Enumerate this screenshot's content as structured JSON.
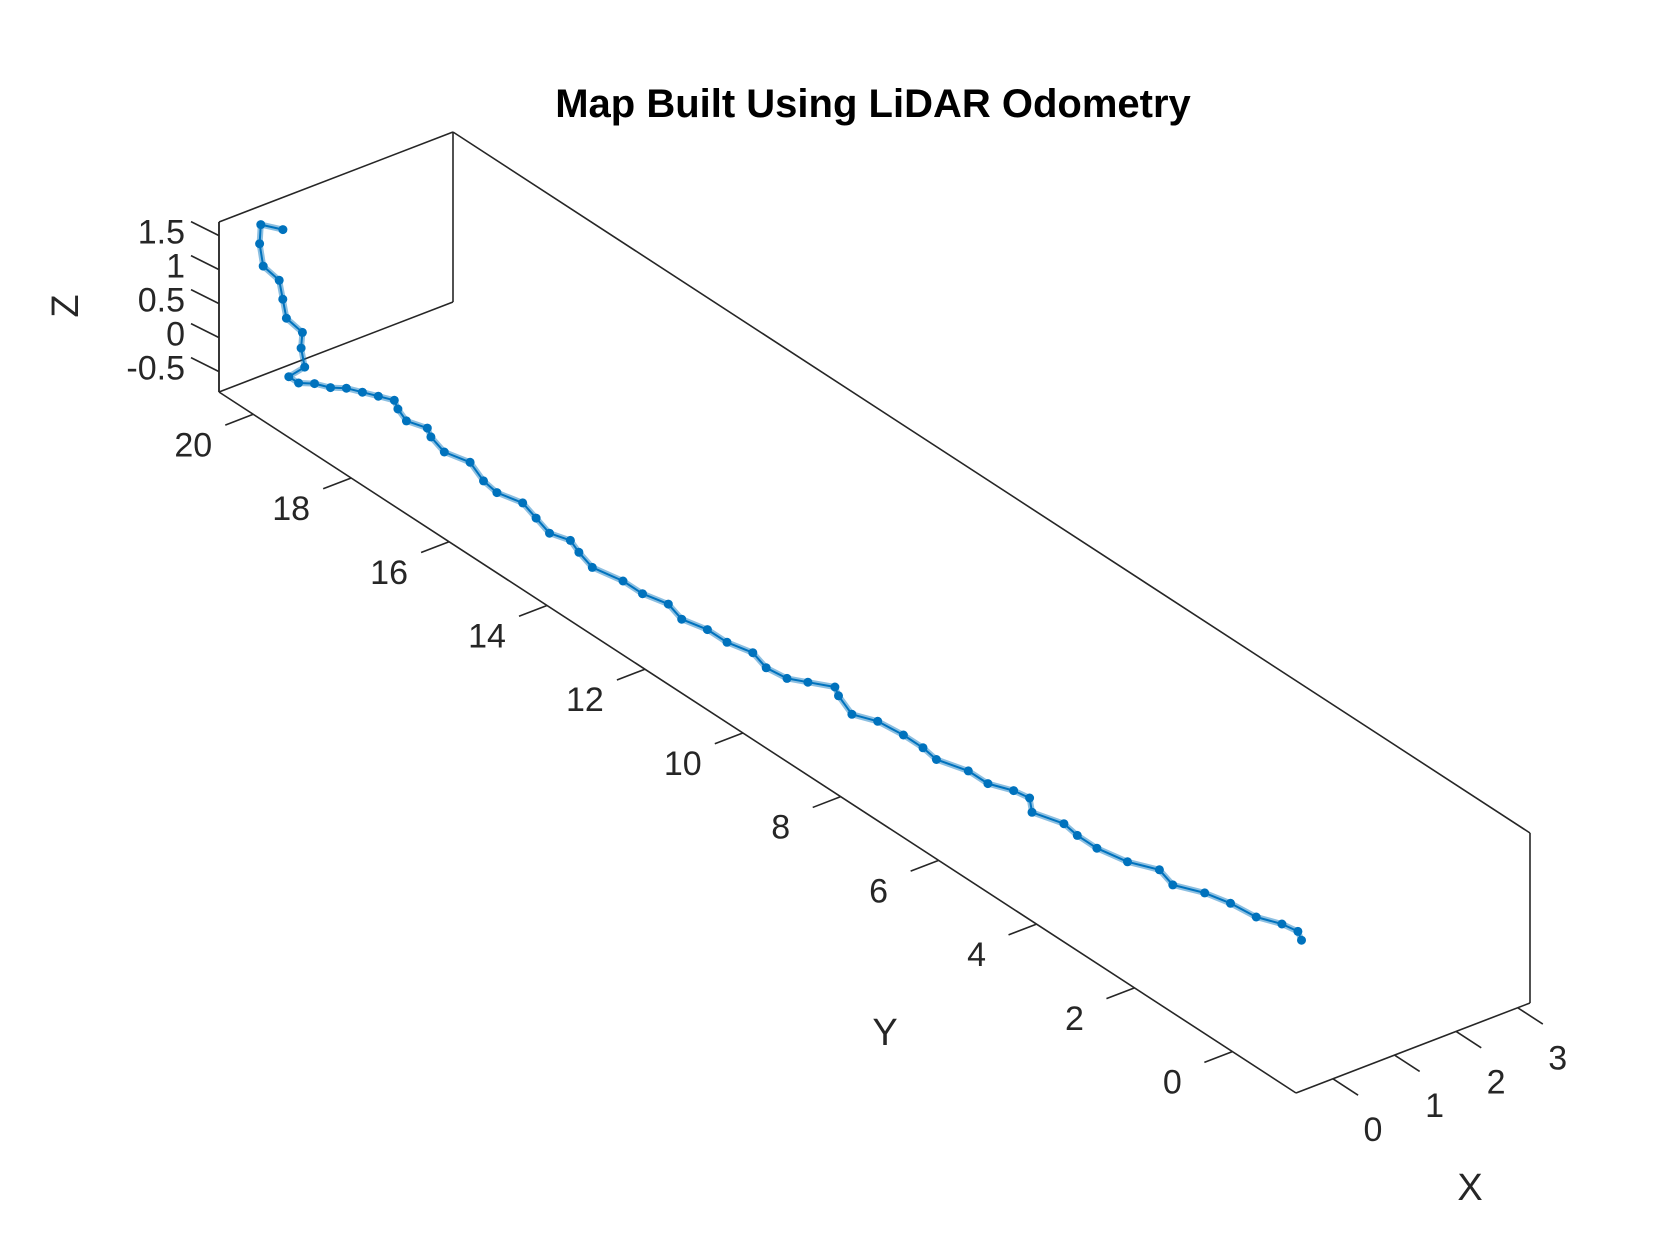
{
  "chart_data": {
    "type": "line3d",
    "title": "Map Built Using LiDAR Odometry",
    "xlabel": "X",
    "ylabel": "Y",
    "zlabel": "Z",
    "xlim": [
      -0.6,
      3.2
    ],
    "ylim": [
      -1.3,
      20.7
    ],
    "zlim": [
      -0.8,
      1.7
    ],
    "x_ticks": [
      "0",
      "1",
      "2",
      "3"
    ],
    "y_ticks": [
      "0",
      "2",
      "4",
      "6",
      "8",
      "10",
      "12",
      "14",
      "16",
      "18",
      "20"
    ],
    "z_ticks": [
      "-0.5",
      "0",
      "0.5",
      "1",
      "1.5"
    ],
    "grid": false,
    "series": [
      {
        "color": "#0072BD",
        "marker": "dot",
        "points": [
          [
            1.0,
            0.6,
            0.0
          ],
          [
            1.1,
            0.8,
            0.0
          ],
          [
            1.0,
            1.0,
            0.05
          ],
          [
            0.9,
            1.4,
            0.0
          ],
          [
            0.8,
            1.8,
            0.05
          ],
          [
            0.7,
            2.2,
            0.05
          ],
          [
            0.5,
            2.6,
            0.05
          ],
          [
            0.6,
            3.0,
            0.05
          ],
          [
            0.4,
            3.4,
            0.05
          ],
          [
            0.3,
            3.9,
            0.05
          ],
          [
            0.3,
            4.3,
            0.05
          ],
          [
            0.4,
            4.7,
            0.0
          ],
          [
            0.2,
            5.1,
            0.05
          ],
          [
            0.4,
            5.4,
            0.05
          ],
          [
            0.3,
            5.6,
            0.1
          ],
          [
            0.2,
            6.0,
            0.05
          ],
          [
            0.2,
            6.4,
            0.05
          ],
          [
            0.0,
            6.8,
            0.1
          ],
          [
            0.1,
            7.2,
            0.05
          ],
          [
            0.1,
            7.6,
            0.05
          ],
          [
            0.0,
            8.0,
            0.1
          ],
          [
            -0.1,
            8.4,
            0.05
          ],
          [
            0.0,
            8.8,
            0.1
          ],
          [
            0.1,
            9.0,
            0.1
          ],
          [
            -0.1,
            9.3,
            0.1
          ],
          [
            -0.2,
            9.6,
            0.05
          ],
          [
            -0.3,
            9.9,
            0.1
          ],
          [
            -0.2,
            10.3,
            0.1
          ],
          [
            -0.3,
            10.7,
            0.1
          ],
          [
            -0.3,
            11.1,
            0.1
          ],
          [
            -0.4,
            11.5,
            0.1
          ],
          [
            -0.3,
            11.9,
            0.1
          ],
          [
            -0.4,
            12.3,
            0.1
          ],
          [
            -0.4,
            12.7,
            0.1
          ],
          [
            -0.5,
            13.2,
            0.1
          ],
          [
            -0.4,
            13.6,
            0.1
          ],
          [
            -0.3,
            13.9,
            0.1
          ],
          [
            -0.4,
            14.2,
            0.1
          ],
          [
            -0.3,
            14.6,
            0.1
          ],
          [
            -0.2,
            15.0,
            0.1
          ],
          [
            -0.3,
            15.4,
            0.1
          ],
          [
            -0.2,
            15.8,
            0.05
          ],
          [
            -0.1,
            16.2,
            0.1
          ],
          [
            -0.2,
            16.6,
            0.1
          ],
          [
            -0.1,
            17.0,
            0.1
          ],
          [
            0.0,
            17.2,
            0.1
          ],
          [
            -0.1,
            17.5,
            0.1
          ],
          [
            0.0,
            17.8,
            0.1
          ],
          [
            0.1,
            18.0,
            0.1
          ],
          [
            0.0,
            18.2,
            0.1
          ],
          [
            -0.1,
            18.4,
            0.1
          ],
          [
            -0.2,
            18.6,
            0.1
          ],
          [
            -0.3,
            18.8,
            0.05
          ],
          [
            -0.4,
            19.0,
            0.05
          ],
          [
            -0.5,
            19.2,
            0.0
          ],
          [
            -0.5,
            19.4,
            0.0
          ],
          [
            -0.4,
            19.2,
            0.2
          ],
          [
            -0.3,
            19.4,
            0.35
          ],
          [
            -0.2,
            19.5,
            0.5
          ],
          [
            -0.3,
            19.7,
            0.65
          ],
          [
            -0.2,
            19.9,
            0.8
          ],
          [
            -0.1,
            20.1,
            0.95
          ],
          [
            -0.2,
            20.3,
            1.1
          ],
          [
            -0.1,
            20.5,
            1.3
          ],
          [
            0.0,
            20.6,
            1.5
          ],
          [
            0.2,
            20.4,
            1.45
          ]
        ]
      }
    ]
  }
}
